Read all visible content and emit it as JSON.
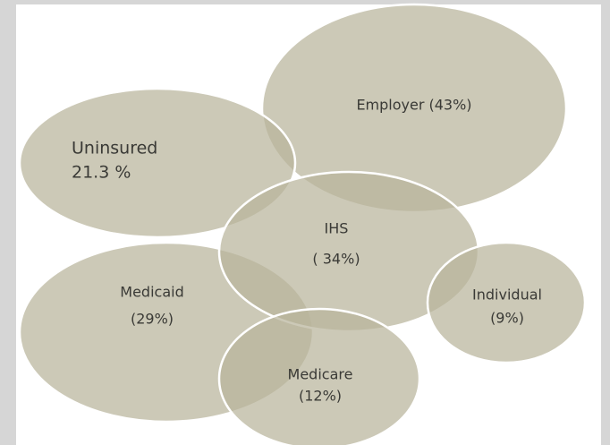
{
  "nodes": [
    {
      "lines": [
        "Employer  (43%)"
      ]
    },
    {
      "lines": [
        "Uninsured",
        "21.3 %"
      ]
    },
    {
      "lines": [
        "IHS",
        "( 34%)"
      ]
    },
    {
      "lines": [
        "Medicaid",
        "(29%)"
      ]
    },
    {
      "lines": [
        "Individual",
        "(9%)"
      ]
    },
    {
      "lines": [
        "Medicare",
        "(12%)"
      ]
    }
  ]
}
